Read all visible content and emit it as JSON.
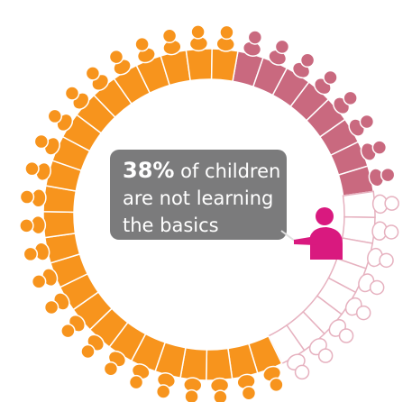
{
  "headline": {
    "value": "38%",
    "lines": [
      "of children",
      "are not learning",
      "the basics"
    ]
  }
}
